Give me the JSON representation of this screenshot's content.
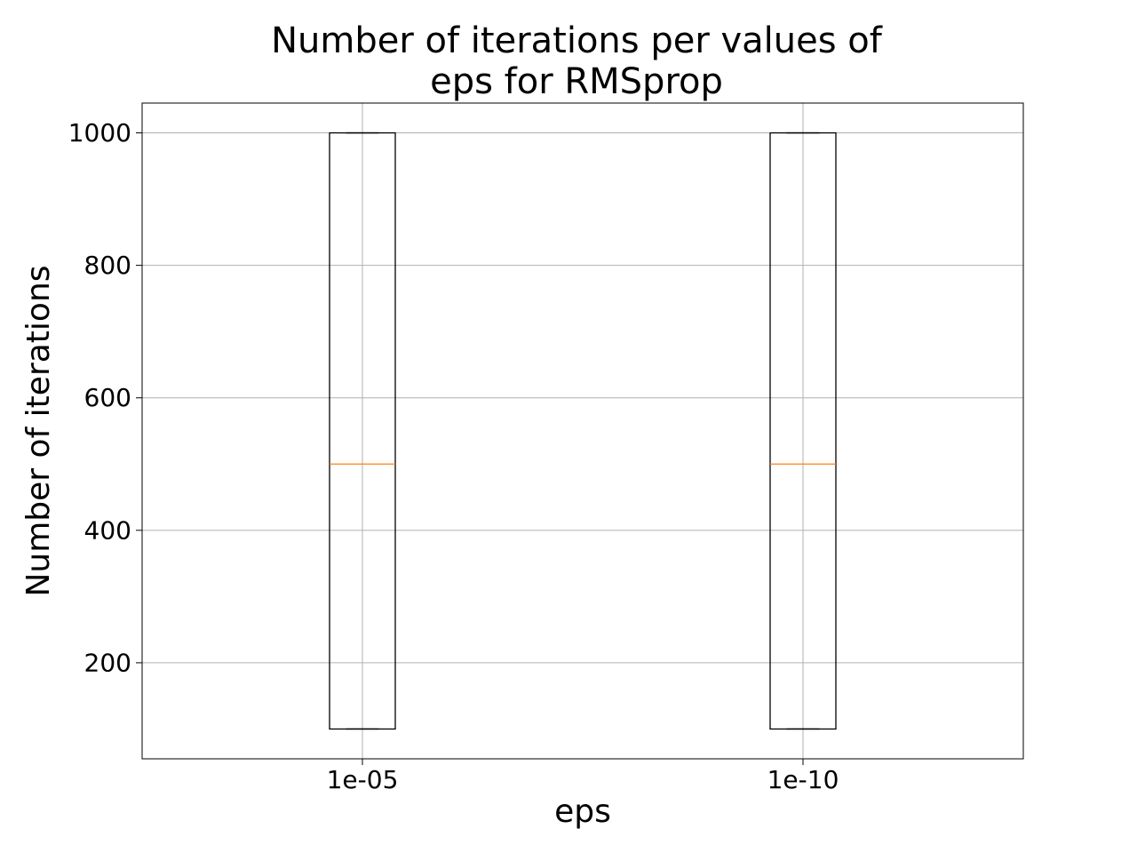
{
  "chart_data": {
    "type": "box",
    "title_lines": [
      "Number of iterations per values of",
      "eps for RMSprop"
    ],
    "xlabel": "eps",
    "ylabel": "Number of iterations",
    "categories": [
      "1e-05",
      "1e-10"
    ],
    "boxes": [
      {
        "category": "1e-05",
        "whisker_low": 100,
        "q1": 100,
        "median": 500,
        "q3": 1000,
        "whisker_high": 1000
      },
      {
        "category": "1e-10",
        "whisker_low": 100,
        "q1": 100,
        "median": 500,
        "q3": 1000,
        "whisker_high": 1000
      }
    ],
    "ylim": [
      55,
      1045
    ],
    "yticks": [
      200,
      400,
      600,
      800,
      1000
    ],
    "grid": true,
    "colors": {
      "box": "#000000",
      "median": "#ff7f0e",
      "grid": "#b0b0b0"
    }
  }
}
